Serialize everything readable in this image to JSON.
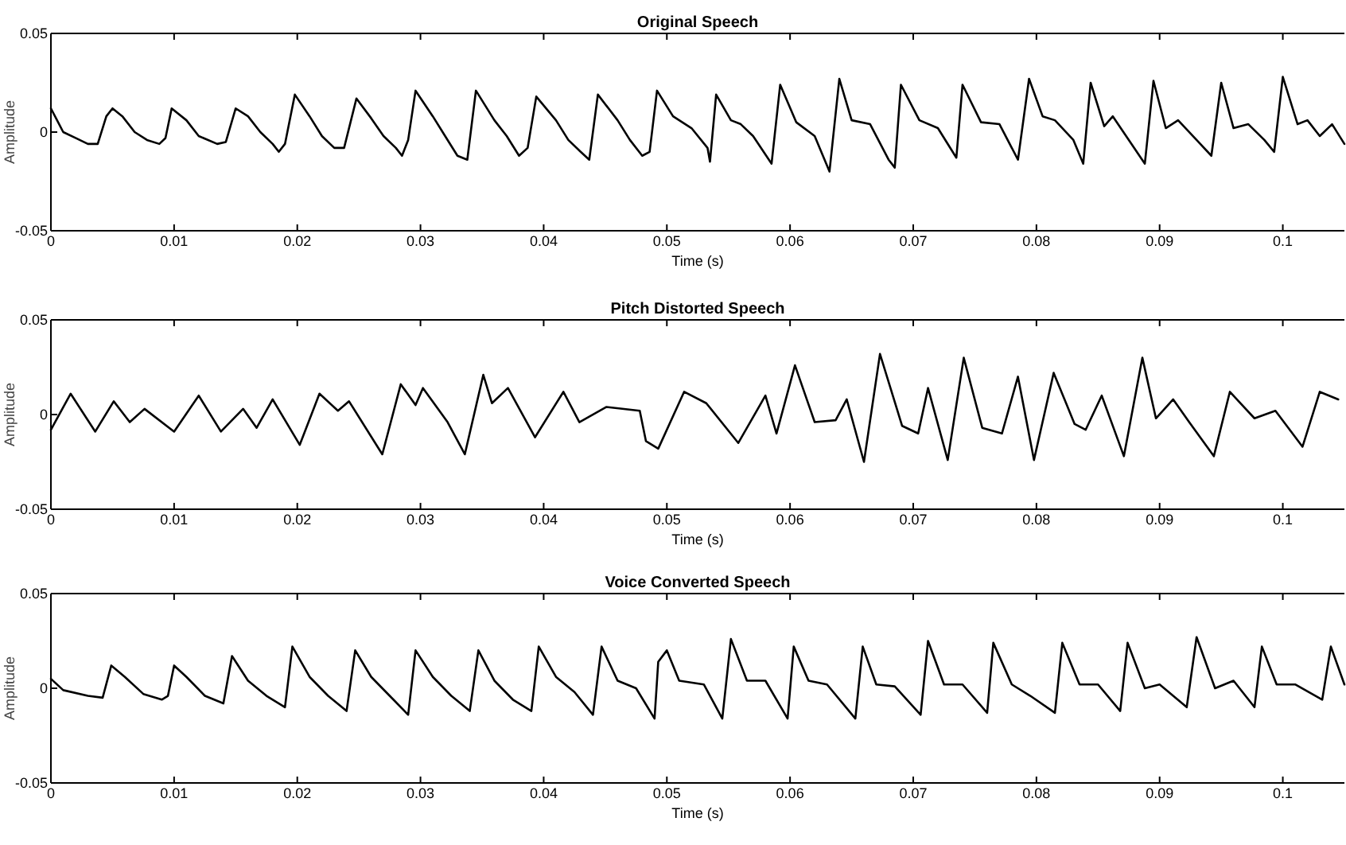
{
  "chart_data": [
    {
      "type": "line",
      "title": "Original Speech",
      "xlabel": "Time (s)",
      "ylabel": "Amplitude",
      "xlim": [
        0,
        0.105
      ],
      "ylim": [
        -0.05,
        0.05
      ],
      "xticks": [
        0,
        0.01,
        0.02,
        0.03,
        0.04,
        0.05,
        0.06,
        0.07,
        0.08,
        0.09,
        0.1
      ],
      "yticks": [
        -0.05,
        0,
        0.05
      ],
      "grid": false,
      "series": [
        {
          "color": "#000000",
          "x": [
            0,
            0.0005,
            0.001,
            0.002,
            0.003,
            0.0038,
            0.0045,
            0.005,
            0.0058,
            0.0068,
            0.0078,
            0.0088,
            0.0093,
            0.0098,
            0.011,
            0.012,
            0.0135,
            0.0142,
            0.015,
            0.016,
            0.017,
            0.018,
            0.0185,
            0.019,
            0.0198,
            0.021,
            0.022,
            0.023,
            0.0238,
            0.0248,
            0.026,
            0.027,
            0.028,
            0.0285,
            0.029,
            0.0296,
            0.031,
            0.032,
            0.033,
            0.0338,
            0.0345,
            0.036,
            0.037,
            0.038,
            0.0387,
            0.0394,
            0.041,
            0.042,
            0.043,
            0.0437,
            0.0444,
            0.046,
            0.047,
            0.048,
            0.0486,
            0.0492,
            0.0505,
            0.052,
            0.0533,
            0.0535,
            0.054,
            0.0552,
            0.056,
            0.057,
            0.0585,
            0.0592,
            0.0605,
            0.062,
            0.0632,
            0.064,
            0.065,
            0.0665,
            0.068,
            0.0685,
            0.069,
            0.0705,
            0.072,
            0.0735,
            0.074,
            0.0755,
            0.077,
            0.0785,
            0.0794,
            0.0805,
            0.0815,
            0.083,
            0.0838,
            0.0844,
            0.0855,
            0.0862,
            0.0875,
            0.0888,
            0.0895,
            0.0905,
            0.0915,
            0.093,
            0.0942,
            0.095,
            0.096,
            0.0972,
            0.0985,
            0.0993,
            0.1,
            0.1012,
            0.102,
            0.103,
            0.104,
            0.105
          ],
          "values": [
            0.012,
            0.006,
            0,
            -0.003,
            -0.006,
            -0.006,
            0.008,
            0.012,
            0.008,
            0,
            -0.004,
            -0.006,
            -0.003,
            0.012,
            0.006,
            -0.002,
            -0.006,
            -0.005,
            0.012,
            0.008,
            0,
            -0.006,
            -0.01,
            -0.006,
            0.019,
            0.008,
            -0.002,
            -0.008,
            -0.008,
            0.017,
            0.007,
            -0.002,
            -0.008,
            -0.012,
            -0.004,
            0.021,
            0.008,
            -0.002,
            -0.012,
            -0.014,
            0.021,
            0.006,
            -0.002,
            -0.012,
            -0.008,
            0.018,
            0.006,
            -0.004,
            -0.01,
            -0.014,
            0.019,
            0.006,
            -0.004,
            -0.012,
            -0.01,
            0.021,
            0.008,
            0.002,
            -0.008,
            -0.015,
            0.019,
            0.006,
            0.004,
            -0.002,
            -0.016,
            0.024,
            0.005,
            -0.002,
            -0.02,
            0.027,
            0.006,
            0.004,
            -0.014,
            -0.018,
            0.024,
            0.006,
            0.002,
            -0.013,
            0.024,
            0.005,
            0.004,
            -0.014,
            0.027,
            0.008,
            0.006,
            -0.004,
            -0.016,
            0.025,
            0.003,
            0.008,
            -0.004,
            -0.016,
            0.026,
            0.002,
            0.006,
            -0.004,
            -0.012,
            0.025,
            0.002,
            0.004,
            -0.004,
            -0.01,
            0.028,
            0.004,
            0.006,
            -0.002,
            0.004,
            -0.006
          ]
        }
      ]
    },
    {
      "type": "line",
      "title": "Pitch Distorted Speech",
      "xlabel": "Time (s)",
      "ylabel": "Amplitude",
      "xlim": [
        0,
        0.105
      ],
      "ylim": [
        -0.05,
        0.05
      ],
      "xticks": [
        0,
        0.01,
        0.02,
        0.03,
        0.04,
        0.05,
        0.06,
        0.07,
        0.08,
        0.09,
        0.1
      ],
      "yticks": [
        -0.05,
        0,
        0.05
      ],
      "grid": false,
      "series": [
        {
          "color": "#000000",
          "x": [
            0,
            0.0016,
            0.0036,
            0.0051,
            0.0064,
            0.0076,
            0.01,
            0.012,
            0.0138,
            0.0156,
            0.0167,
            0.018,
            0.0202,
            0.0218,
            0.0233,
            0.0242,
            0.0269,
            0.0284,
            0.0296,
            0.0302,
            0.0322,
            0.0336,
            0.0351,
            0.0358,
            0.0371,
            0.0393,
            0.0416,
            0.0429,
            0.0451,
            0.0478,
            0.0483,
            0.0493,
            0.0514,
            0.0532,
            0.0558,
            0.058,
            0.0589,
            0.0604,
            0.062,
            0.0637,
            0.0646,
            0.066,
            0.0673,
            0.0691,
            0.0704,
            0.0712,
            0.0728,
            0.0741,
            0.0756,
            0.0772,
            0.0785,
            0.0798,
            0.0814,
            0.0831,
            0.084,
            0.0853,
            0.0871,
            0.0886,
            0.0897,
            0.0911,
            0.0924,
            0.0944,
            0.0957,
            0.0977,
            0.0994,
            0.1016,
            0.103,
            0.1045
          ],
          "values": [
            -0.008,
            0.011,
            -0.009,
            0.007,
            -0.004,
            0.003,
            -0.009,
            0.01,
            -0.009,
            0.003,
            -0.007,
            0.008,
            -0.016,
            0.011,
            0.002,
            0.007,
            -0.021,
            0.016,
            0.005,
            0.014,
            -0.004,
            -0.021,
            0.021,
            0.006,
            0.014,
            -0.012,
            0.012,
            -0.004,
            0.004,
            0.002,
            -0.014,
            -0.018,
            0.012,
            0.006,
            -0.015,
            0.01,
            -0.01,
            0.026,
            -0.004,
            -0.003,
            0.008,
            -0.025,
            0.032,
            -0.006,
            -0.01,
            0.014,
            -0.024,
            0.03,
            -0.007,
            -0.01,
            0.02,
            -0.024,
            0.022,
            -0.005,
            -0.008,
            0.01,
            -0.022,
            0.03,
            -0.002,
            0.008,
            -0.004,
            -0.022,
            0.012,
            -0.002,
            0.002,
            -0.017,
            0.012,
            0.008
          ]
        }
      ]
    },
    {
      "type": "line",
      "title": "Voice Converted Speech",
      "xlabel": "Time (s)",
      "ylabel": "Amplitude",
      "xlim": [
        0,
        0.105
      ],
      "ylim": [
        -0.05,
        0.05
      ],
      "xticks": [
        0,
        0.01,
        0.02,
        0.03,
        0.04,
        0.05,
        0.06,
        0.07,
        0.08,
        0.09,
        0.1
      ],
      "yticks": [
        -0.05,
        0,
        0.05
      ],
      "grid": false,
      "series": [
        {
          "color": "#000000",
          "x": [
            0,
            0.001,
            0.003,
            0.0042,
            0.0049,
            0.006,
            0.0075,
            0.009,
            0.0095,
            0.01,
            0.011,
            0.0125,
            0.014,
            0.0147,
            0.016,
            0.0175,
            0.019,
            0.0196,
            0.021,
            0.0225,
            0.024,
            0.0247,
            0.026,
            0.0275,
            0.029,
            0.0296,
            0.031,
            0.0325,
            0.034,
            0.0347,
            0.036,
            0.0375,
            0.039,
            0.0396,
            0.041,
            0.0425,
            0.044,
            0.0447,
            0.046,
            0.0475,
            0.049,
            0.0493,
            0.05,
            0.051,
            0.053,
            0.0545,
            0.0552,
            0.0565,
            0.058,
            0.0598,
            0.0603,
            0.0615,
            0.063,
            0.0653,
            0.0659,
            0.067,
            0.0685,
            0.0706,
            0.0712,
            0.0725,
            0.074,
            0.076,
            0.0765,
            0.078,
            0.0795,
            0.0815,
            0.0821,
            0.0835,
            0.085,
            0.0868,
            0.0874,
            0.0888,
            0.09,
            0.0922,
            0.093,
            0.0945,
            0.096,
            0.0977,
            0.0983,
            0.0995,
            0.101,
            0.1032,
            0.1039,
            0.105
          ],
          "values": [
            0.005,
            -0.001,
            -0.004,
            -0.005,
            0.012,
            0.006,
            -0.003,
            -0.006,
            -0.004,
            0.012,
            0.006,
            -0.004,
            -0.008,
            0.017,
            0.004,
            -0.004,
            -0.01,
            0.022,
            0.006,
            -0.004,
            -0.012,
            0.02,
            0.006,
            -0.004,
            -0.014,
            0.02,
            0.006,
            -0.004,
            -0.012,
            0.02,
            0.004,
            -0.006,
            -0.012,
            0.022,
            0.006,
            -0.002,
            -0.014,
            0.022,
            0.004,
            0,
            -0.016,
            0.014,
            0.02,
            0.004,
            0.002,
            -0.016,
            0.026,
            0.004,
            0.004,
            -0.016,
            0.022,
            0.004,
            0.002,
            -0.016,
            0.022,
            0.002,
            0.001,
            -0.014,
            0.025,
            0.002,
            0.002,
            -0.013,
            0.024,
            0.002,
            -0.004,
            -0.013,
            0.024,
            0.002,
            0.002,
            -0.012,
            0.024,
            0,
            0.002,
            -0.01,
            0.027,
            0,
            0.004,
            -0.01,
            0.022,
            0.002,
            0.002,
            -0.006,
            0.022,
            0.002
          ]
        }
      ]
    }
  ]
}
